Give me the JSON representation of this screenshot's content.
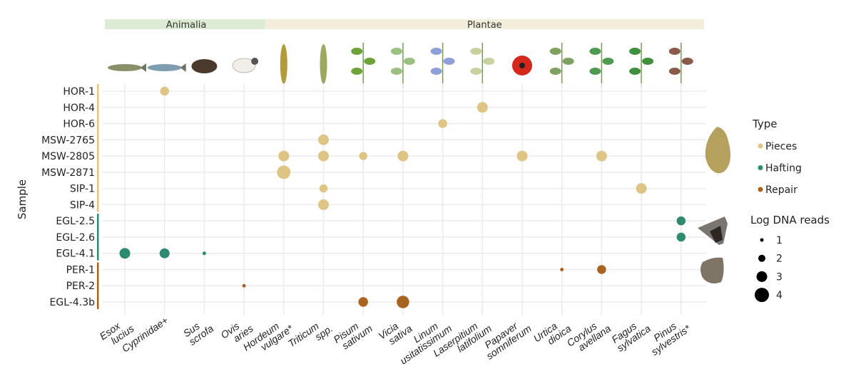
{
  "chart_data": {
    "type": "scatter",
    "ylabel": "Sample",
    "groups": [
      {
        "label": "Animalia",
        "color": "#dcebd3",
        "taxa": [
          "Esox lucius",
          "Cyprinidae+",
          "Sus scrofa",
          "Ovis aries"
        ]
      },
      {
        "label": "Plantae",
        "color": "#f3eedb",
        "taxa": [
          "Hordeum vulgare*",
          "Triticum spp.",
          "Pisum sativum",
          "Vicia sativa",
          "Linum usitatissimum",
          "Laserpitium latifolium",
          "Papaver somniferum",
          "Urtica dioica",
          "Corylus avellana",
          "Fagus sylvatica",
          "Pinus sylvestris*"
        ]
      }
    ],
    "x_categories": [
      [
        "Esox",
        "lucius"
      ],
      [
        "Cyprinidae+",
        ""
      ],
      [
        "Sus",
        "scrofa"
      ],
      [
        "Ovis",
        "aries"
      ],
      [
        "Hordeum",
        "vulgare*"
      ],
      [
        "Triticum",
        "spp."
      ],
      [
        "Pisum",
        "sativum"
      ],
      [
        "Vicia",
        "sativa"
      ],
      [
        "Linum",
        "usitatissimum"
      ],
      [
        "Laserpitium",
        "latifolium"
      ],
      [
        "Papaver",
        "somniferum"
      ],
      [
        "Urtica",
        "dioica"
      ],
      [
        "Corylus",
        "avellana"
      ],
      [
        "Fagus",
        "sylvatica"
      ],
      [
        "Pinus",
        "sylvestris*"
      ]
    ],
    "y_categories": [
      "HOR-1",
      "HOR-4",
      "HOR-6",
      "MSW-2765",
      "MSW-2805",
      "MSW-2871",
      "SIP-1",
      "SIP-4",
      "EGL-2.5",
      "EGL-2.6",
      "EGL-4.1",
      "PER-1",
      "PER-2",
      "EGL-4.3b"
    ],
    "sample_types": {
      "Pieces": [
        "HOR-1",
        "HOR-4",
        "HOR-6",
        "MSW-2765",
        "MSW-2805",
        "MSW-2871",
        "SIP-1",
        "SIP-4"
      ],
      "Hafting": [
        "EGL-2.5",
        "EGL-2.6",
        "EGL-4.1"
      ],
      "Repair": [
        "PER-1",
        "PER-2",
        "EGL-4.3b"
      ]
    },
    "type_colors": {
      "Pieces": "#dfc585",
      "Hafting": "#2e8a70",
      "Repair": "#a8631f"
    },
    "points": [
      {
        "sample": "HOR-1",
        "taxon": 1,
        "type": "Pieces",
        "log_reads": 2.5
      },
      {
        "sample": "HOR-4",
        "taxon": 9,
        "type": "Pieces",
        "log_reads": 3
      },
      {
        "sample": "HOR-6",
        "taxon": 8,
        "type": "Pieces",
        "log_reads": 2.5
      },
      {
        "sample": "MSW-2765",
        "taxon": 5,
        "type": "Pieces",
        "log_reads": 3
      },
      {
        "sample": "MSW-2805",
        "taxon": 4,
        "type": "Pieces",
        "log_reads": 3
      },
      {
        "sample": "MSW-2805",
        "taxon": 5,
        "type": "Pieces",
        "log_reads": 3
      },
      {
        "sample": "MSW-2805",
        "taxon": 6,
        "type": "Pieces",
        "log_reads": 2.3
      },
      {
        "sample": "MSW-2805",
        "taxon": 7,
        "type": "Pieces",
        "log_reads": 3
      },
      {
        "sample": "MSW-2805",
        "taxon": 10,
        "type": "Pieces",
        "log_reads": 3
      },
      {
        "sample": "MSW-2805",
        "taxon": 12,
        "type": "Pieces",
        "log_reads": 3
      },
      {
        "sample": "MSW-2871",
        "taxon": 4,
        "type": "Pieces",
        "log_reads": 3.8
      },
      {
        "sample": "SIP-1",
        "taxon": 5,
        "type": "Pieces",
        "log_reads": 2.3
      },
      {
        "sample": "SIP-1",
        "taxon": 13,
        "type": "Pieces",
        "log_reads": 3
      },
      {
        "sample": "SIP-4",
        "taxon": 5,
        "type": "Pieces",
        "log_reads": 3
      },
      {
        "sample": "EGL-2.5",
        "taxon": 14,
        "type": "Hafting",
        "log_reads": 2.5
      },
      {
        "sample": "EGL-2.6",
        "taxon": 14,
        "type": "Hafting",
        "log_reads": 2.5
      },
      {
        "sample": "EGL-4.1",
        "taxon": 0,
        "type": "Hafting",
        "log_reads": 3
      },
      {
        "sample": "EGL-4.1",
        "taxon": 1,
        "type": "Hafting",
        "log_reads": 2.8
      },
      {
        "sample": "EGL-4.1",
        "taxon": 2,
        "type": "Hafting",
        "log_reads": 1
      },
      {
        "sample": "PER-1",
        "taxon": 11,
        "type": "Repair",
        "log_reads": 1
      },
      {
        "sample": "PER-1",
        "taxon": 12,
        "type": "Repair",
        "log_reads": 2.5
      },
      {
        "sample": "PER-2",
        "taxon": 3,
        "type": "Repair",
        "log_reads": 1
      },
      {
        "sample": "EGL-4.3b",
        "taxon": 6,
        "type": "Repair",
        "log_reads": 2.7
      },
      {
        "sample": "EGL-4.3b",
        "taxon": 7,
        "type": "Repair",
        "log_reads": 3.5
      }
    ],
    "legend": {
      "type_title": "Type",
      "types": [
        "Pieces",
        "Hafting",
        "Repair"
      ],
      "size_title": "Log DNA reads",
      "sizes": [
        1,
        2,
        3,
        4
      ],
      "placement": "right"
    }
  }
}
